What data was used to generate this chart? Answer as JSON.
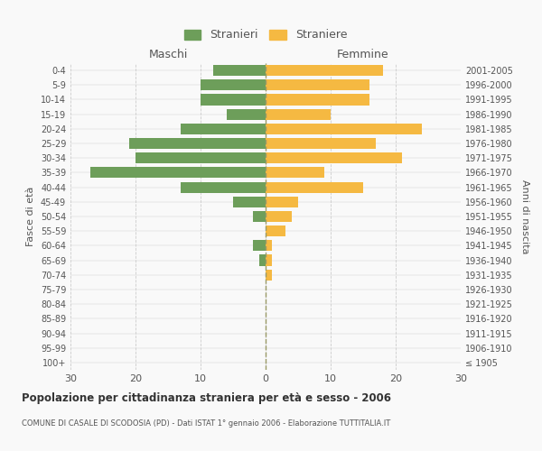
{
  "age_groups": [
    "100+",
    "95-99",
    "90-94",
    "85-89",
    "80-84",
    "75-79",
    "70-74",
    "65-69",
    "60-64",
    "55-59",
    "50-54",
    "45-49",
    "40-44",
    "35-39",
    "30-34",
    "25-29",
    "20-24",
    "15-19",
    "10-14",
    "5-9",
    "0-4"
  ],
  "birth_years": [
    "≤ 1905",
    "1906-1910",
    "1911-1915",
    "1916-1920",
    "1921-1925",
    "1926-1930",
    "1931-1935",
    "1936-1940",
    "1941-1945",
    "1946-1950",
    "1951-1955",
    "1956-1960",
    "1961-1965",
    "1966-1970",
    "1971-1975",
    "1976-1980",
    "1981-1985",
    "1986-1990",
    "1991-1995",
    "1996-2000",
    "2001-2005"
  ],
  "maschi": [
    0,
    0,
    0,
    0,
    0,
    0,
    0,
    1,
    2,
    0,
    2,
    5,
    13,
    27,
    20,
    21,
    13,
    6,
    10,
    10,
    8
  ],
  "femmine": [
    0,
    0,
    0,
    0,
    0,
    0,
    1,
    1,
    1,
    3,
    4,
    5,
    15,
    9,
    21,
    17,
    24,
    10,
    16,
    16,
    18
  ],
  "maschi_color": "#6d9e5a",
  "femmine_color": "#f5b942",
  "title": "Popolazione per cittadinanza straniera per età e sesso - 2006",
  "subtitle": "COMUNE DI CASALE DI SCODOSIA (PD) - Dati ISTAT 1° gennaio 2006 - Elaborazione TUTTITALIA.IT",
  "xlabel_left": "Maschi",
  "xlabel_right": "Femmine",
  "ylabel_left": "Fasce di età",
  "ylabel_right": "Anni di nascita",
  "xlim": 30,
  "legend_stranieri": "Stranieri",
  "legend_straniere": "Straniere",
  "bg_color": "#f9f9f9",
  "grid_color": "#cccccc",
  "axis_color": "#888888",
  "text_color": "#555555"
}
